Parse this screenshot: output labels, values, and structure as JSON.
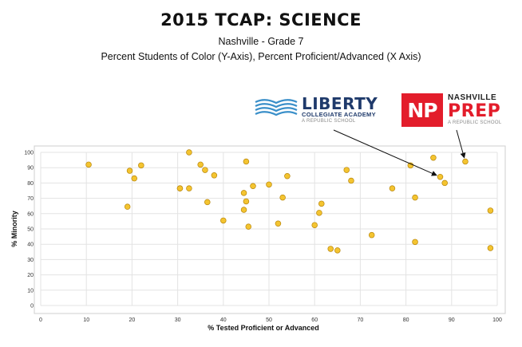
{
  "header": {
    "title": "2015 TCAP:  SCIENCE",
    "subtitle1": "Nashville - Grade 7",
    "subtitle2": "Percent Students of Color (Y-Axis), Percent Proficient/Advanced (X Axis)"
  },
  "logos": {
    "liberty": {
      "name": "LIBERTY",
      "subtitle": "COLLEGIATE ACADEMY",
      "tagline": "A REPUBLIC SCHOOL"
    },
    "nashville_prep": {
      "mark": "NP",
      "line1": "NASHVILLE",
      "line2": "PREP",
      "tagline": "A REPUBLIC SCHOOL",
      "color": "#e31d2b"
    }
  },
  "colors": {
    "point_fill": "#f4c430",
    "point_stroke": "#b8860b",
    "grid": "#e3e3e3"
  },
  "chart_data": {
    "type": "scatter",
    "xlabel": "% Tested Proficient or Advanced",
    "ylabel": "% Minority",
    "xlim": [
      0,
      100
    ],
    "ylim": [
      0,
      100
    ],
    "xticks": [
      0,
      10,
      20,
      30,
      40,
      50,
      60,
      70,
      80,
      90,
      100
    ],
    "yticks": [
      0,
      10,
      20,
      30,
      40,
      50,
      60,
      70,
      80,
      90,
      100
    ],
    "grid": true,
    "points": [
      {
        "x": 10.5,
        "y": 92
      },
      {
        "x": 19,
        "y": 64.5
      },
      {
        "x": 19.5,
        "y": 88
      },
      {
        "x": 20.5,
        "y": 83
      },
      {
        "x": 22,
        "y": 91.5
      },
      {
        "x": 30.5,
        "y": 76.5
      },
      {
        "x": 30.5,
        "y": 76.5
      },
      {
        "x": 32.5,
        "y": 76.5
      },
      {
        "x": 32.5,
        "y": 100
      },
      {
        "x": 35,
        "y": 92
      },
      {
        "x": 36,
        "y": 88.5
      },
      {
        "x": 36.5,
        "y": 67.5
      },
      {
        "x": 38,
        "y": 85
      },
      {
        "x": 40,
        "y": 55.5
      },
      {
        "x": 44.5,
        "y": 62.5
      },
      {
        "x": 44.5,
        "y": 73.5
      },
      {
        "x": 45,
        "y": 68
      },
      {
        "x": 45,
        "y": 94
      },
      {
        "x": 45.5,
        "y": 51.5
      },
      {
        "x": 46.5,
        "y": 78
      },
      {
        "x": 50,
        "y": 79
      },
      {
        "x": 52,
        "y": 53.5
      },
      {
        "x": 53,
        "y": 70.5
      },
      {
        "x": 54,
        "y": 84.5
      },
      {
        "x": 60,
        "y": 52.5
      },
      {
        "x": 61,
        "y": 60.5
      },
      {
        "x": 61.5,
        "y": 66.5
      },
      {
        "x": 63.5,
        "y": 37
      },
      {
        "x": 65,
        "y": 36
      },
      {
        "x": 67,
        "y": 88.5
      },
      {
        "x": 68,
        "y": 81.5
      },
      {
        "x": 72.5,
        "y": 46
      },
      {
        "x": 77,
        "y": 76.5
      },
      {
        "x": 81,
        "y": 91.5
      },
      {
        "x": 82,
        "y": 70.5
      },
      {
        "x": 82,
        "y": 41.5
      },
      {
        "x": 86,
        "y": 96.5
      },
      {
        "x": 87.5,
        "y": 84
      },
      {
        "x": 88.5,
        "y": 80
      },
      {
        "x": 93,
        "y": 94
      },
      {
        "x": 98.5,
        "y": 62
      },
      {
        "x": 98.5,
        "y": 37.5
      }
    ],
    "annotations": [
      {
        "label": "LIBERTY",
        "target": {
          "x": 87.5,
          "y": 84
        }
      },
      {
        "label": "NASHVILLE PREP",
        "target": {
          "x": 93,
          "y": 94
        }
      }
    ]
  }
}
